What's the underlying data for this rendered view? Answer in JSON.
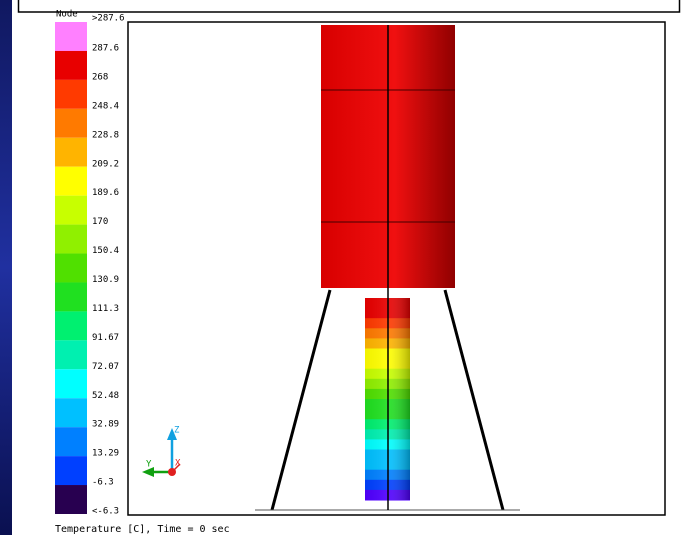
{
  "legend": {
    "title": "Node",
    "labels": [
      ">287.6",
      "287.6",
      "268",
      "248.4",
      "228.8",
      "209.2",
      "189.6",
      "170",
      "150.4",
      "130.9",
      "111.3",
      "91.67",
      "72.07",
      "52.48",
      "32.89",
      "13.29",
      "-6.3",
      "<-6.3"
    ],
    "colors": [
      "#ff80ff",
      "#e80000",
      "#ff3a00",
      "#ff7a00",
      "#ffb400",
      "#ffff00",
      "#c8ff00",
      "#90f000",
      "#50e000",
      "#20e020",
      "#00f070",
      "#00f0b0",
      "#00ffff",
      "#00c0ff",
      "#0080ff",
      "#0040ff",
      "#5000ff"
    ],
    "below_color": "#280050"
  },
  "triad": {
    "z": "Z",
    "y": "Y",
    "x": "X"
  },
  "footer": "Temperature [C], Time = 0 sec"
}
